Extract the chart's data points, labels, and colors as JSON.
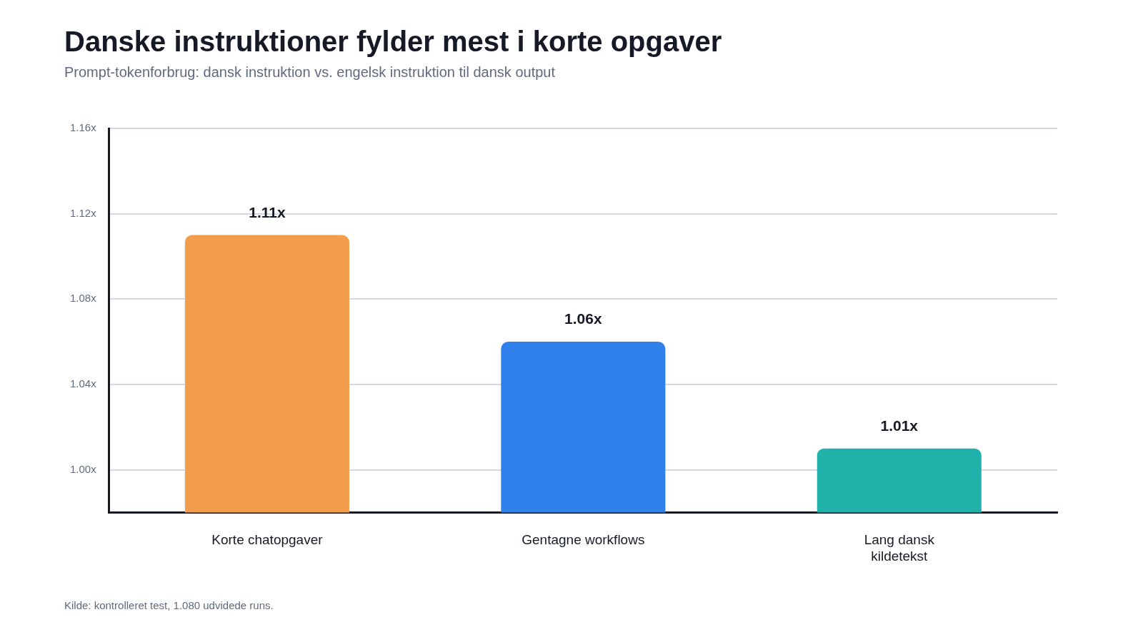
{
  "chart_data": {
    "type": "bar",
    "title": "Danske instruktioner fylder mest i korte opgaver",
    "subtitle": "Prompt-tokenforbrug: dansk instruktion vs. engelsk instruktion til dansk output",
    "categories": [
      "Korte chatopgaver",
      "Gentagne workflows",
      "Lang dansk kildetekst"
    ],
    "values": [
      1.11,
      1.06,
      1.01
    ],
    "colors": [
      "#f39c4b",
      "#2f80ea",
      "#20b2aa"
    ],
    "value_labels": [
      "1.11x",
      "1.06x",
      "1.01x"
    ],
    "ylim": [
      0.98,
      1.16
    ],
    "yticks": [
      {
        "value": 1.0,
        "label": "1.00x"
      },
      {
        "value": 1.04,
        "label": "1.04x"
      },
      {
        "value": 1.08,
        "label": "1.08x"
      },
      {
        "value": 1.12,
        "label": "1.12x"
      },
      {
        "value": 1.16,
        "label": "1.16x"
      }
    ],
    "grid": "y",
    "legend": false,
    "annotations": [
      "Kilde: kontrolleret test, 1.080 udvidede runs."
    ]
  }
}
